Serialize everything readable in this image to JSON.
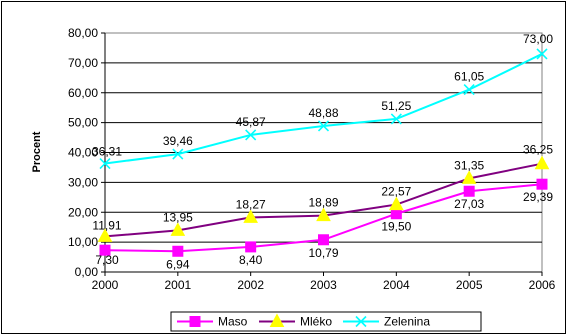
{
  "chart_data": {
    "type": "line",
    "title": "",
    "xlabel": "",
    "ylabel": "Procent",
    "ylim": [
      0,
      80
    ],
    "yticks": [
      "0,00",
      "10,00",
      "20,00",
      "30,00",
      "40,00",
      "50,00",
      "60,00",
      "70,00",
      "80,00"
    ],
    "ytick_values": [
      0,
      10,
      20,
      30,
      40,
      50,
      60,
      70,
      80
    ],
    "categories": [
      "2000",
      "2001",
      "2002",
      "2003",
      "2004",
      "2005",
      "2006"
    ],
    "grid": "horizontal",
    "legend_position": "bottom",
    "series": [
      {
        "name": "Maso",
        "values": [
          7.3,
          6.94,
          8.4,
          10.79,
          19.5,
          27.03,
          29.39
        ],
        "labels": [
          "7,30",
          "6,94",
          "8,40",
          "10,79",
          "19,50",
          "27,03",
          "29,39"
        ],
        "color": "#ff00ff",
        "marker": "square"
      },
      {
        "name": "Mléko",
        "values": [
          11.91,
          13.95,
          18.27,
          18.89,
          22.57,
          31.35,
          36.25
        ],
        "labels": [
          "11,91",
          "13,95",
          "18,27",
          "18,89",
          "22,57",
          "31,35",
          "36,25"
        ],
        "color": "#800080",
        "marker": "triangle",
        "marker_color": "#ffff00"
      },
      {
        "name": "Zelenina",
        "values": [
          36.31,
          39.46,
          45.87,
          48.88,
          51.25,
          61.05,
          73.0
        ],
        "labels": [
          "36,31",
          "39,46",
          "45,87",
          "48,88",
          "51,25",
          "61,05",
          "73,00"
        ],
        "color": "#00ffff",
        "marker": "x"
      }
    ]
  }
}
